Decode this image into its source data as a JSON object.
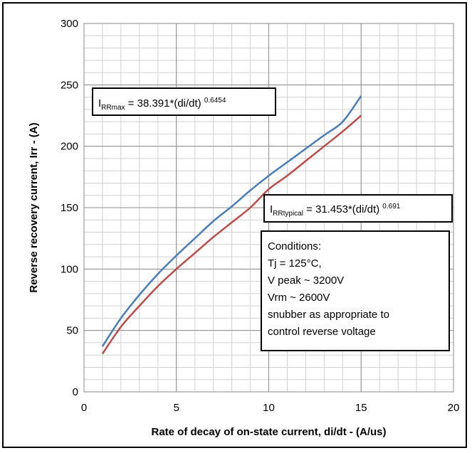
{
  "chart_data": {
    "type": "line",
    "xlabel": "Rate of decay of on-state current, di/dt - (A/us)",
    "ylabel": "Reverse recovery current, Irr - (A)",
    "xlim": [
      0,
      20
    ],
    "ylim": [
      0,
      300
    ],
    "x_ticks": [
      "0",
      "5",
      "10",
      "15",
      "20"
    ],
    "y_ticks": [
      "0",
      "50",
      "100",
      "150",
      "200",
      "250",
      "300"
    ],
    "x_minor_step": 1,
    "y_minor_step": 10,
    "grid": true,
    "series": [
      {
        "color": "#4a7ebb",
        "x": [
          1,
          2,
          3,
          4,
          5,
          6,
          7,
          8,
          9,
          10,
          11,
          12,
          13,
          14,
          15
        ],
        "y": [
          37,
          60,
          79,
          96,
          111,
          125,
          139,
          151,
          164,
          176,
          187,
          198,
          209,
          220,
          241
        ]
      },
      {
        "color": "#be4b48",
        "x": [
          1,
          2,
          3,
          4,
          5,
          6,
          7,
          8,
          9,
          10,
          11,
          12,
          13,
          14,
          15
        ],
        "y": [
          31,
          53,
          70,
          86,
          100,
          113,
          126,
          138,
          150,
          165,
          176,
          188,
          200,
          212,
          225
        ]
      }
    ],
    "annotations": {
      "max_formula": {
        "main": "I",
        "sub": "RRmax",
        "mid": " = 38.391*(di/dt) ",
        "sup": "0.6454"
      },
      "typical_formula": {
        "main": "I",
        "sub": "RRtypical",
        "mid": " = 31.453*(di/dt) ",
        "sup": "0.691"
      },
      "conditions": [
        "Conditions:",
        "Tj = 125°C,",
        "V peak ~ 3200V",
        "Vrm ~ 2600V",
        "snubber as appropriate to",
        "control reverse voltage"
      ]
    }
  }
}
